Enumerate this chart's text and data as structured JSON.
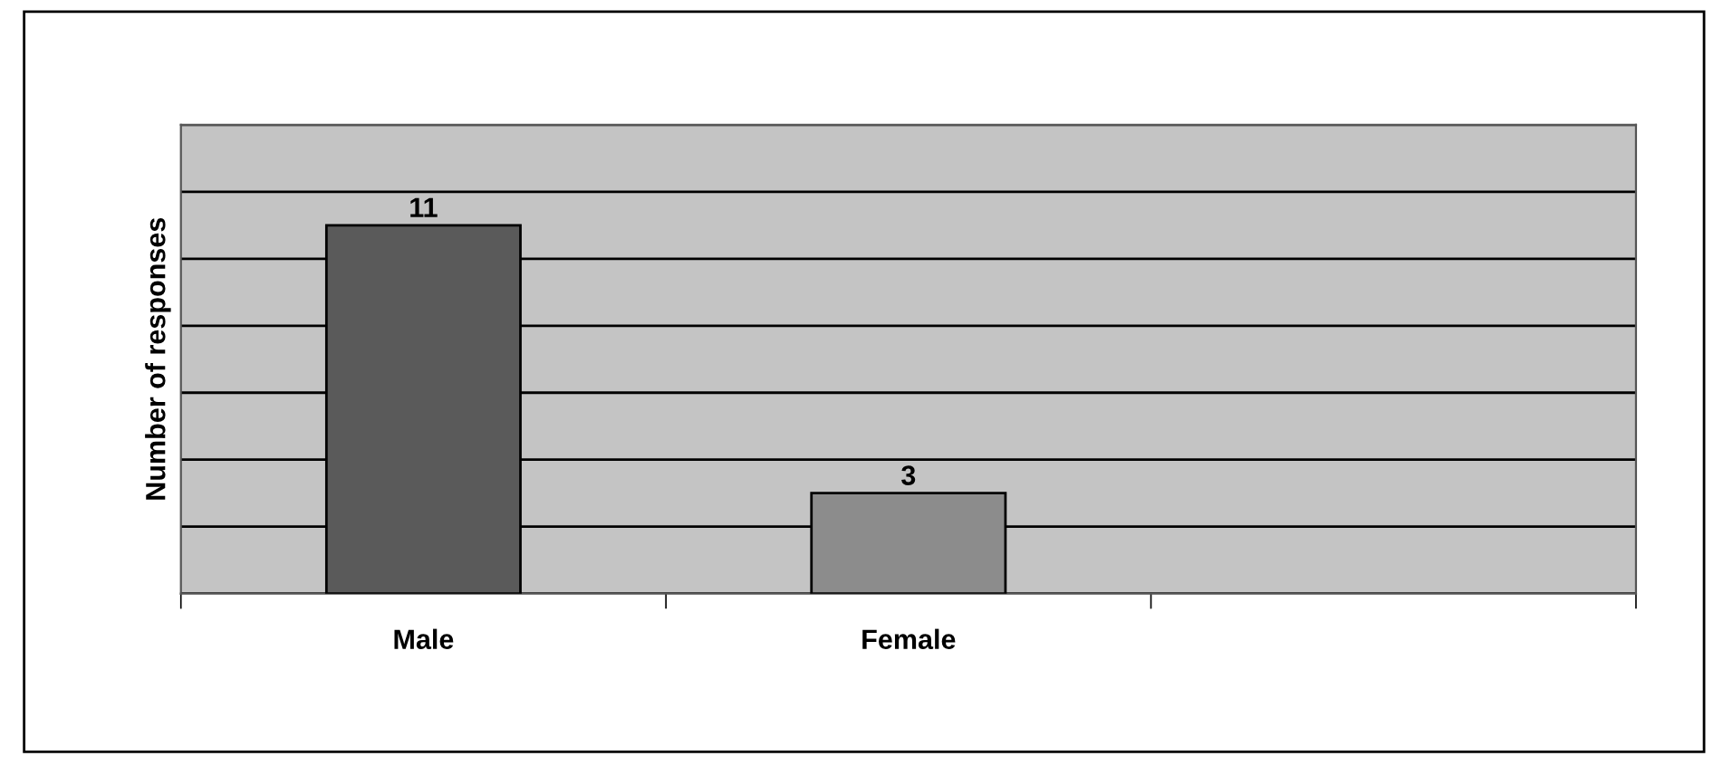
{
  "chart_data": {
    "type": "bar",
    "ylabel": "Number of responses",
    "categories": [
      "Male",
      "Female",
      null
    ],
    "values": [
      11,
      3,
      null
    ],
    "colors": [
      "#5a5a5a",
      "#8c8c8c",
      "#8c8c8c"
    ],
    "ylim": [
      0,
      14
    ],
    "yticks": [
      {
        "value": 0,
        "label": null
      },
      {
        "value": 2,
        "label": null
      },
      {
        "value": 4,
        "label": null
      },
      {
        "value": 6,
        "label": null
      },
      {
        "value": 8,
        "label": null
      },
      {
        "value": 10,
        "label": null
      },
      {
        "value": 12,
        "label": null
      },
      {
        "value": 14,
        "label": null
      }
    ],
    "grid": "y",
    "data_labels": true,
    "tick_labels": "x"
  }
}
